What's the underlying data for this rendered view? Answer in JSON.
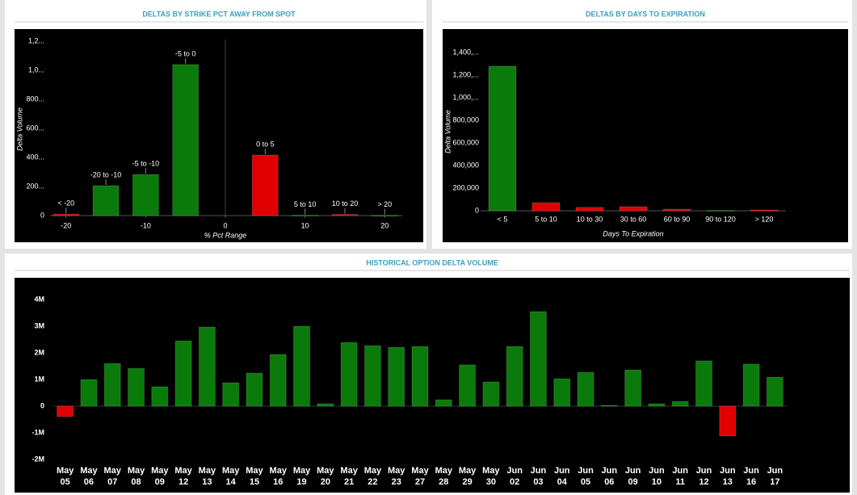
{
  "chart_data": [
    {
      "type": "bar",
      "title": "DELTAS BY STRIKE PCT AWAY FROM SPOT",
      "x_label": "% Pct Range",
      "y_label": "Delta Volume",
      "x": [
        -20,
        -15,
        -10,
        -5,
        5,
        10,
        15,
        20
      ],
      "bar_labels": [
        "< -20",
        "-20 to -10",
        "-5 to -10",
        "-5 to 0",
        "0 to 5",
        "5 to 10",
        "10 to 20",
        "> 20"
      ],
      "values": [
        10000,
        206000,
        283000,
        1039000,
        417000,
        3000,
        8000,
        2000
      ],
      "colors": [
        "#e00000",
        "#0a7a0a",
        "#0a7a0a",
        "#0a7a0a",
        "#e00000",
        "#0a7a0a",
        "#e00000",
        "#0a7a0a"
      ],
      "xlim": [
        -22,
        22.2
      ],
      "xticks": [
        -20,
        -10,
        0,
        10,
        20
      ],
      "vline_x": 0,
      "ylim": [
        0,
        1200000
      ],
      "yticks": [
        0,
        {
          "value": 200000,
          "label": "200..."
        },
        {
          "value": 400000,
          "label": "400..."
        },
        {
          "value": 600000,
          "label": "600..."
        },
        {
          "value": 800000,
          "label": "800..."
        },
        {
          "value": 1000000,
          "label": "1,0..."
        },
        {
          "value": 1200000,
          "label": "1,2..."
        }
      ]
    },
    {
      "type": "bar",
      "title": "DELTAS BY DAYS TO EXPIRATION",
      "x_label": "Days To Expiration",
      "y_label": "Delta Volume",
      "categories": [
        "< 5",
        "5 to 10",
        "10 to 30",
        "30 to 60",
        "60 to 90",
        "90 to 120",
        "> 120"
      ],
      "values": [
        1279000,
        71000,
        30000,
        36000,
        14000,
        3000,
        7000
      ],
      "colors": [
        "#0a7a0a",
        "#e00000",
        "#e00000",
        "#e00000",
        "#e00000",
        "#0a7a0a",
        "#e00000"
      ],
      "ylim": [
        0,
        1400000
      ],
      "yticks": [
        0,
        {
          "value": 200000,
          "label": "200,000"
        },
        {
          "value": 400000,
          "label": "400,000"
        },
        {
          "value": 600000,
          "label": "600,000"
        },
        {
          "value": 800000,
          "label": "800,000"
        },
        {
          "value": 1000000,
          "label": "1,000,..."
        },
        {
          "value": 1200000,
          "label": "1,200,..."
        },
        {
          "value": 1400000,
          "label": "1,400,..."
        }
      ]
    },
    {
      "type": "bar",
      "title": "HISTORICAL OPTION DELTA VOLUME",
      "categories": [
        "May 05",
        "May 06",
        "May 07",
        "May 08",
        "May 09",
        "May 12",
        "May 13",
        "May 14",
        "May 15",
        "May 16",
        "May 19",
        "May 20",
        "May 21",
        "May 22",
        "May 23",
        "May 27",
        "May 28",
        "May 29",
        "May 30",
        "Jun 02",
        "Jun 03",
        "Jun 04",
        "Jun 05",
        "Jun 06",
        "Jun 09",
        "Jun 10",
        "Jun 11",
        "Jun 12",
        "Jun 13",
        "Jun 16",
        "Jun 17"
      ],
      "values": [
        -390000,
        1000000,
        1600000,
        1420000,
        730000,
        2450000,
        2970000,
        880000,
        1240000,
        1940000,
        3000000,
        90000,
        2390000,
        2270000,
        2210000,
        2240000,
        240000,
        1550000,
        910000,
        2240000,
        3550000,
        1030000,
        1270000,
        30000,
        1360000,
        90000,
        180000,
        1700000,
        -1120000,
        1580000,
        1090000
      ],
      "colors": [
        "#e00000",
        "#0a7a0a",
        "#0a7a0a",
        "#0a7a0a",
        "#0a7a0a",
        "#0a7a0a",
        "#0a7a0a",
        "#0a7a0a",
        "#0a7a0a",
        "#0a7a0a",
        "#0a7a0a",
        "#0a7a0a",
        "#0a7a0a",
        "#0a7a0a",
        "#0a7a0a",
        "#0a7a0a",
        "#0a7a0a",
        "#0a7a0a",
        "#0a7a0a",
        "#0a7a0a",
        "#0a7a0a",
        "#0a7a0a",
        "#0a7a0a",
        "#0a7a0a",
        "#0a7a0a",
        "#0a7a0a",
        "#0a7a0a",
        "#0a7a0a",
        "#e00000",
        "#0a7a0a",
        "#0a7a0a"
      ],
      "ylim": [
        -2000000,
        4000000
      ],
      "yticks": [
        {
          "value": -2000000,
          "label": "-2M"
        },
        {
          "value": -1000000,
          "label": "-1M"
        },
        0,
        {
          "value": 1000000,
          "label": "1M"
        },
        {
          "value": 2000000,
          "label": "2M"
        },
        {
          "value": 3000000,
          "label": "3M"
        },
        {
          "value": 4000000,
          "label": "4M"
        }
      ]
    }
  ]
}
